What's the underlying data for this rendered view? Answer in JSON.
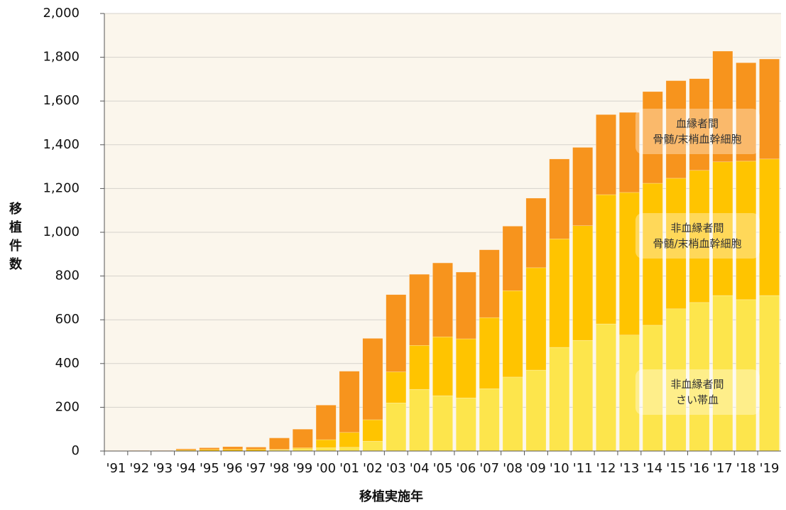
{
  "chart_data": {
    "type": "stacked_bar",
    "x_label": "移植実施年",
    "y_label": "移植件数",
    "categories": [
      "'91",
      "'92",
      "'93",
      "'94",
      "'95",
      "'96",
      "'97",
      "'98",
      "'99",
      "'00",
      "'01",
      "'02",
      "'03",
      "'04",
      "'05",
      "'06",
      "'07",
      "'08",
      "'09",
      "'10",
      "'11",
      "'12",
      "'13",
      "'14",
      "'15",
      "'16",
      "'17",
      "'18",
      "'19"
    ],
    "series": [
      {
        "name": "非血縁者間\nさい帯血",
        "color": "#fde54c",
        "values": [
          0,
          0,
          0,
          0,
          0,
          0,
          0,
          5,
          10,
          15,
          17,
          45,
          220,
          282,
          253,
          243,
          285,
          338,
          370,
          474,
          506,
          581,
          530,
          575,
          650,
          679,
          711,
          692,
          711
        ]
      },
      {
        "name": "非血縁者間\n骨髄/末梢血幹細胞",
        "color": "#ffc400",
        "values": [
          1,
          2,
          2,
          5,
          7,
          8,
          8,
          3,
          5,
          37,
          68,
          98,
          142,
          201,
          269,
          270,
          325,
          395,
          468,
          496,
          524,
          591,
          652,
          649,
          597,
          604,
          611,
          633,
          624
        ]
      },
      {
        "name": "血縁者間\n骨髄/末梢血幹細胞",
        "color": "#f7941d",
        "values": [
          1,
          1,
          1,
          5,
          8,
          12,
          10,
          52,
          85,
          158,
          280,
          372,
          353,
          325,
          338,
          305,
          310,
          295,
          318,
          365,
          358,
          366,
          366,
          419,
          446,
          419,
          506,
          450,
          457
        ]
      }
    ],
    "ylim": [
      0,
      2000
    ],
    "yticks": [
      0,
      200,
      400,
      600,
      800,
      {
        "value": 1000,
        "label": "1,000"
      },
      {
        "value": 1200,
        "label": "1,200"
      },
      {
        "value": 1400,
        "label": "1,400"
      },
      {
        "value": 1600,
        "label": "1,600"
      },
      {
        "value": 1800,
        "label": "1,800"
      },
      {
        "value": 2000,
        "label": "2,000"
      }
    ],
    "grid": true
  }
}
